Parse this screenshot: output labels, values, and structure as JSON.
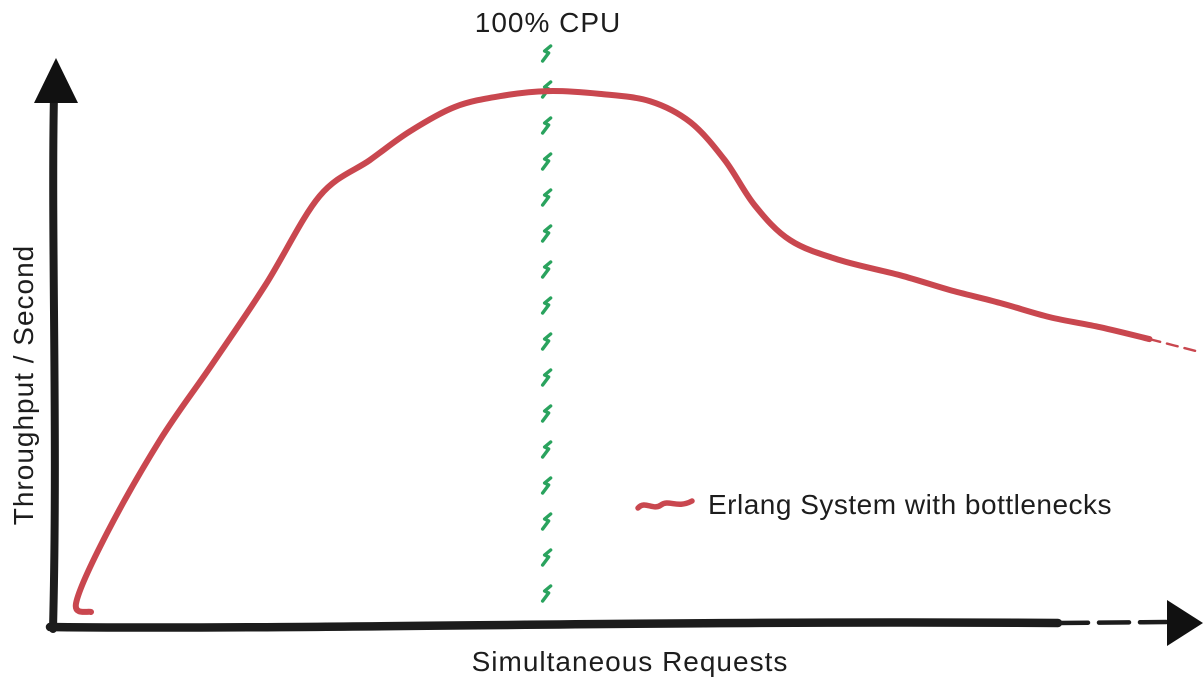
{
  "title": "100% CPU",
  "axes": {
    "x_label": "Simultaneous Requests",
    "y_label": "Throughput / Second",
    "style": "hand-drawn arrows, no ticks, no numeric scale"
  },
  "legend": {
    "position": "right-middle",
    "items": [
      {
        "label": "Erlang System with bottlenecks",
        "swatch": "squiggle-line",
        "color": "#c9474f"
      }
    ]
  },
  "colors": {
    "curve": "#c9474f",
    "cpu_limit_line": "#2aa35e",
    "axis": "#1c1c1c",
    "text": "#1d1d1d",
    "background": "#ffffff"
  },
  "chart_data": {
    "type": "line",
    "title": "100% CPU",
    "xlabel": "Simultaneous Requests",
    "ylabel": "Throughput / Second",
    "x_range": [
      0,
      100
    ],
    "y_range": [
      0,
      100
    ],
    "ticks": [],
    "grid": false,
    "legend_position": "right-middle",
    "description": "Qualitative sketch: throughput rises steeply with simultaneous requests, peaks near the 100% CPU point, then degrades past saturation into a long declining tail; coordinates normalized 0-100.",
    "series": [
      {
        "name": "Erlang System with bottlenecks",
        "color": "#c9474f",
        "points": [
          [
            3.4,
            2.3
          ],
          [
            2.1,
            3.9
          ],
          [
            4.8,
            16.3
          ],
          [
            9.4,
            32.7
          ],
          [
            13.8,
            45.7
          ],
          [
            18.6,
            60.2
          ],
          [
            23.3,
            75.9
          ],
          [
            27.7,
            82.3
          ],
          [
            31.2,
            87.4
          ],
          [
            35.1,
            91.7
          ],
          [
            39.0,
            93.6
          ],
          [
            43.2,
            94.5
          ],
          [
            47.7,
            94.0
          ],
          [
            52.1,
            92.7
          ],
          [
            55.6,
            89.0
          ],
          [
            58.6,
            82.3
          ],
          [
            61.2,
            74.3
          ],
          [
            64.3,
            68.1
          ],
          [
            68.6,
            64.6
          ],
          [
            73.9,
            61.9
          ],
          [
            78.2,
            59.3
          ],
          [
            82.6,
            57.0
          ],
          [
            86.9,
            54.5
          ],
          [
            91.3,
            52.7
          ],
          [
            95.6,
            50.6
          ],
          [
            100,
            48.3
          ]
        ],
        "peak": {
          "x": 43.2,
          "y": 94.5
        },
        "tail_style": "fades to dashes at right edge"
      }
    ],
    "annotations": [
      {
        "type": "vline",
        "label": "100% CPU",
        "x": 43.0,
        "style": "dashed",
        "color": "#2aa35e",
        "spans": "from just below title to x-axis"
      }
    ]
  }
}
